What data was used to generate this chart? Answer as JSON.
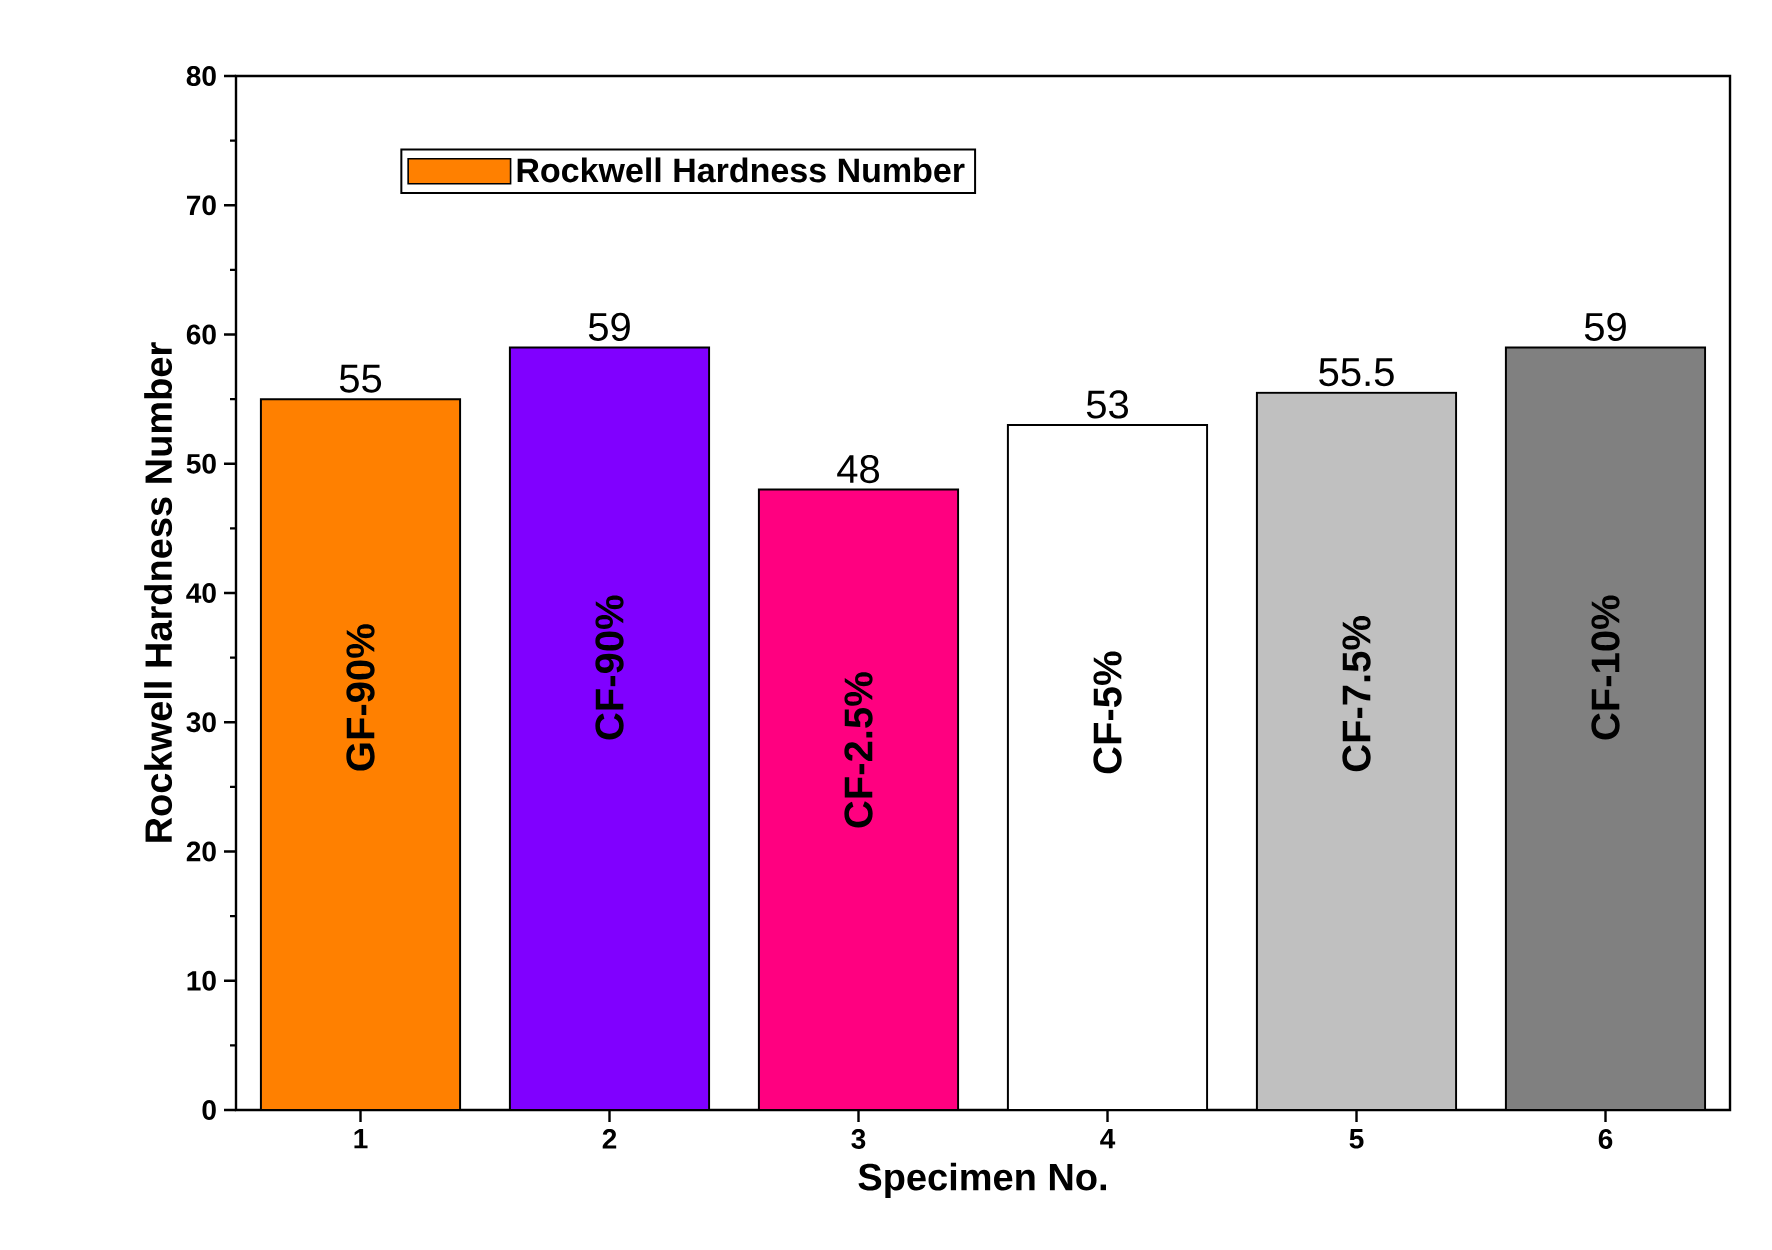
{
  "chart_data": {
    "type": "bar",
    "xlabel": "Specimen No.",
    "ylabel": "Rockwell Hardness Number",
    "categories": [
      "1",
      "2",
      "3",
      "4",
      "5",
      "6"
    ],
    "series": [
      {
        "name": "Rockwell Hardness Number",
        "values": [
          55,
          59,
          48,
          53,
          55.5,
          59
        ],
        "colors": [
          "#ff8000",
          "#8000ff",
          "#ff0080",
          "#ffffff",
          "#c0c0c0",
          "#808080"
        ]
      }
    ],
    "ylim": [
      0,
      80
    ],
    "yticks": [
      0,
      10,
      20,
      30,
      40,
      50,
      60,
      70,
      80
    ],
    "data_labels": true,
    "legend": "top left",
    "grid": false,
    "annotations": [
      "GF-90%",
      "CF-90%",
      "CF-2.5%",
      "CF-5%",
      "CF-7.5%",
      "CF-10%"
    ]
  }
}
